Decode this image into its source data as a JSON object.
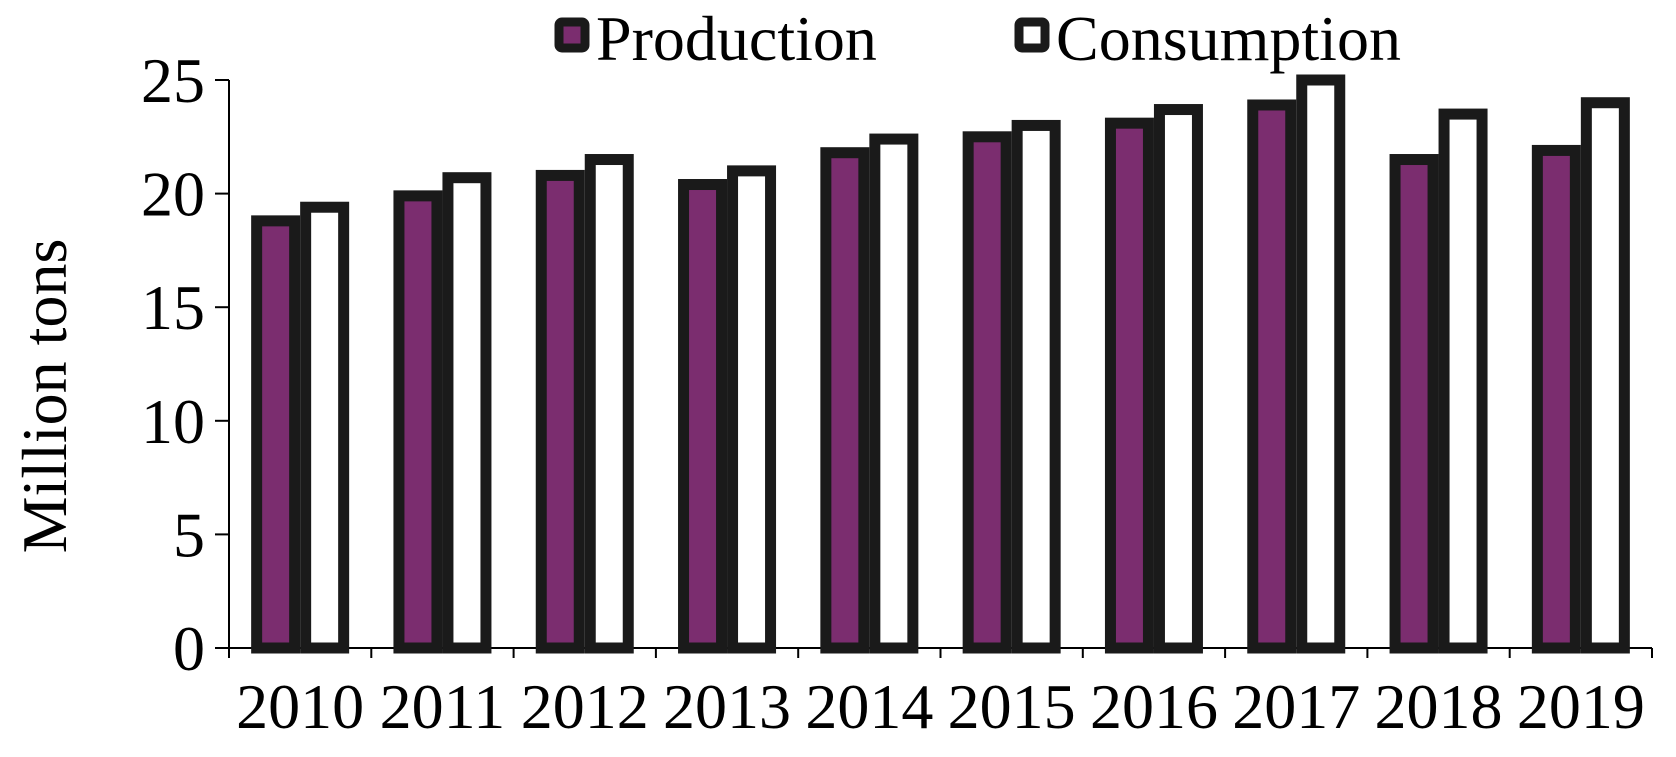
{
  "chart_data": {
    "type": "bar",
    "title": "",
    "xlabel": "",
    "ylabel": "Million tons",
    "ylim": [
      0,
      25
    ],
    "yticks": [
      "0",
      "5",
      "10",
      "15",
      "20",
      "25"
    ],
    "categories": [
      "2010",
      "2011",
      "2012",
      "2013",
      "2014",
      "2015",
      "2016",
      "2017",
      "2018",
      "2019"
    ],
    "series": [
      {
        "name": "Production",
        "values": [
          18.8,
          19.9,
          20.8,
          20.4,
          21.8,
          22.5,
          23.1,
          23.9,
          21.5,
          21.9
        ],
        "color": "#7B2D6F"
      },
      {
        "name": "Consumption",
        "values": [
          19.4,
          20.7,
          21.5,
          21.0,
          22.4,
          23.0,
          23.7,
          25.0,
          23.5,
          24.0
        ],
        "color": "#FFFFFF"
      }
    ],
    "bar_outline_color": "#1A1A1A",
    "legend_position": "top",
    "grid": false
  }
}
